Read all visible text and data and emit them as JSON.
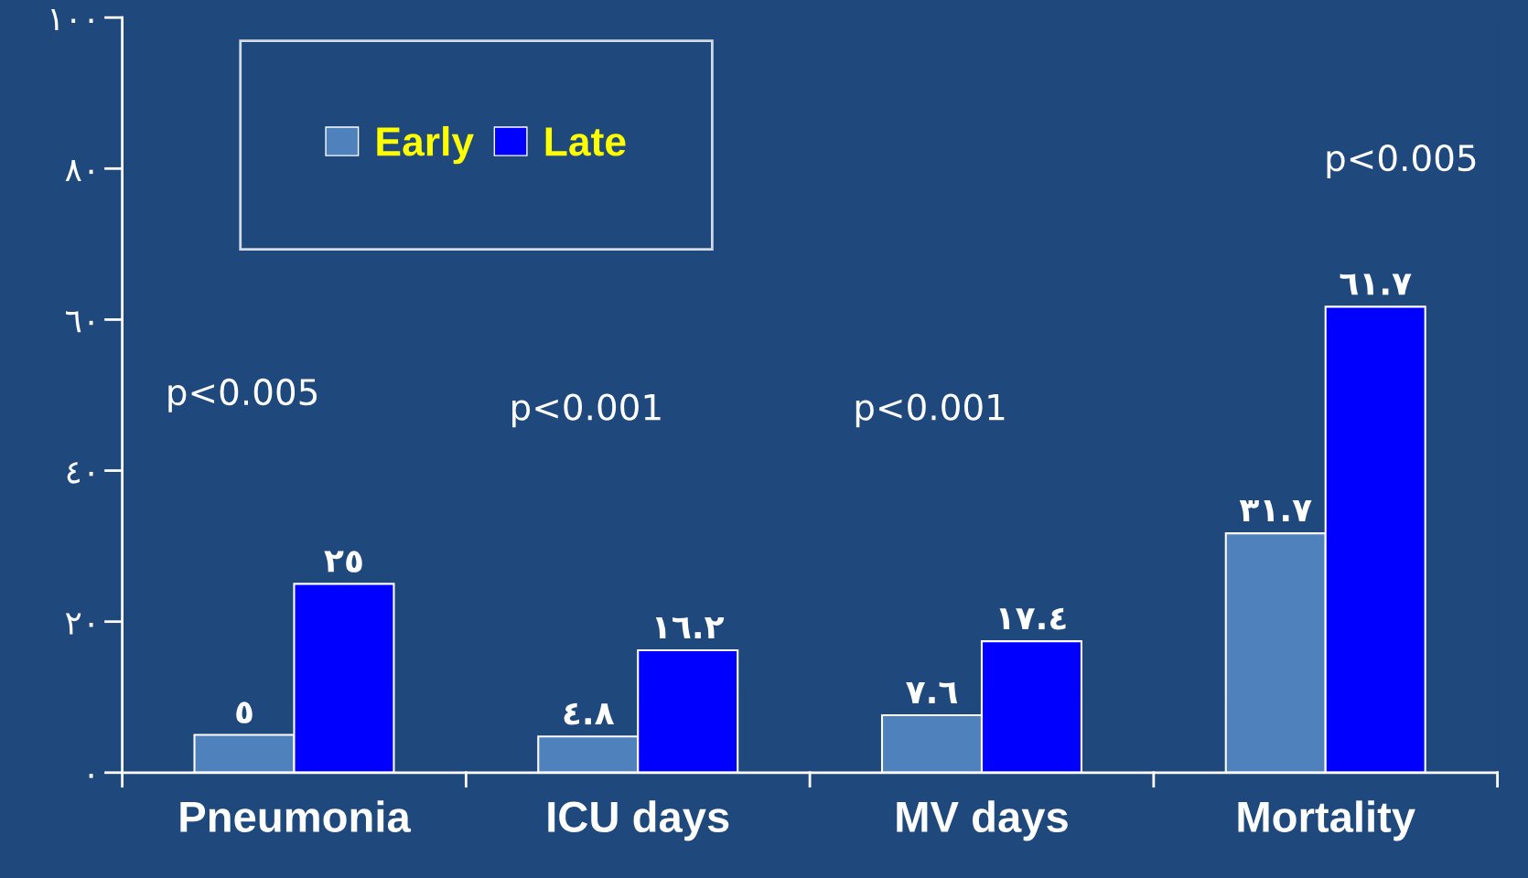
{
  "chart_data": {
    "type": "bar",
    "categories": [
      "Pneumonia",
      "ICU days",
      "MV days",
      "Mortality"
    ],
    "series": [
      {
        "name": "Early",
        "color": "#4f81bd",
        "values": [
          5,
          4.8,
          7.6,
          31.7
        ],
        "value_labels": [
          "٥",
          "٤.٨",
          "٧.٦",
          "٣١.٧"
        ]
      },
      {
        "name": "Late",
        "color": "#0000ff",
        "values": [
          25,
          16.2,
          17.4,
          61.7
        ],
        "value_labels": [
          "٢٥",
          "١٦.٢",
          "١٧.٤",
          "٦١.٧"
        ]
      }
    ],
    "ylim": [
      0,
      100
    ],
    "yticks": [
      {
        "value": 0,
        "label": "٠"
      },
      {
        "value": 20,
        "label": "٢٠"
      },
      {
        "value": 40,
        "label": "٤٠"
      },
      {
        "value": 60,
        "label": "٦٠"
      },
      {
        "value": 80,
        "label": "٨٠"
      },
      {
        "value": 100,
        "label": "١٠٠"
      }
    ],
    "grid": false,
    "legend": "top left",
    "annotations": [
      "p<0.005",
      "p<0.001",
      "p<0.001",
      "p<0.005"
    ]
  }
}
